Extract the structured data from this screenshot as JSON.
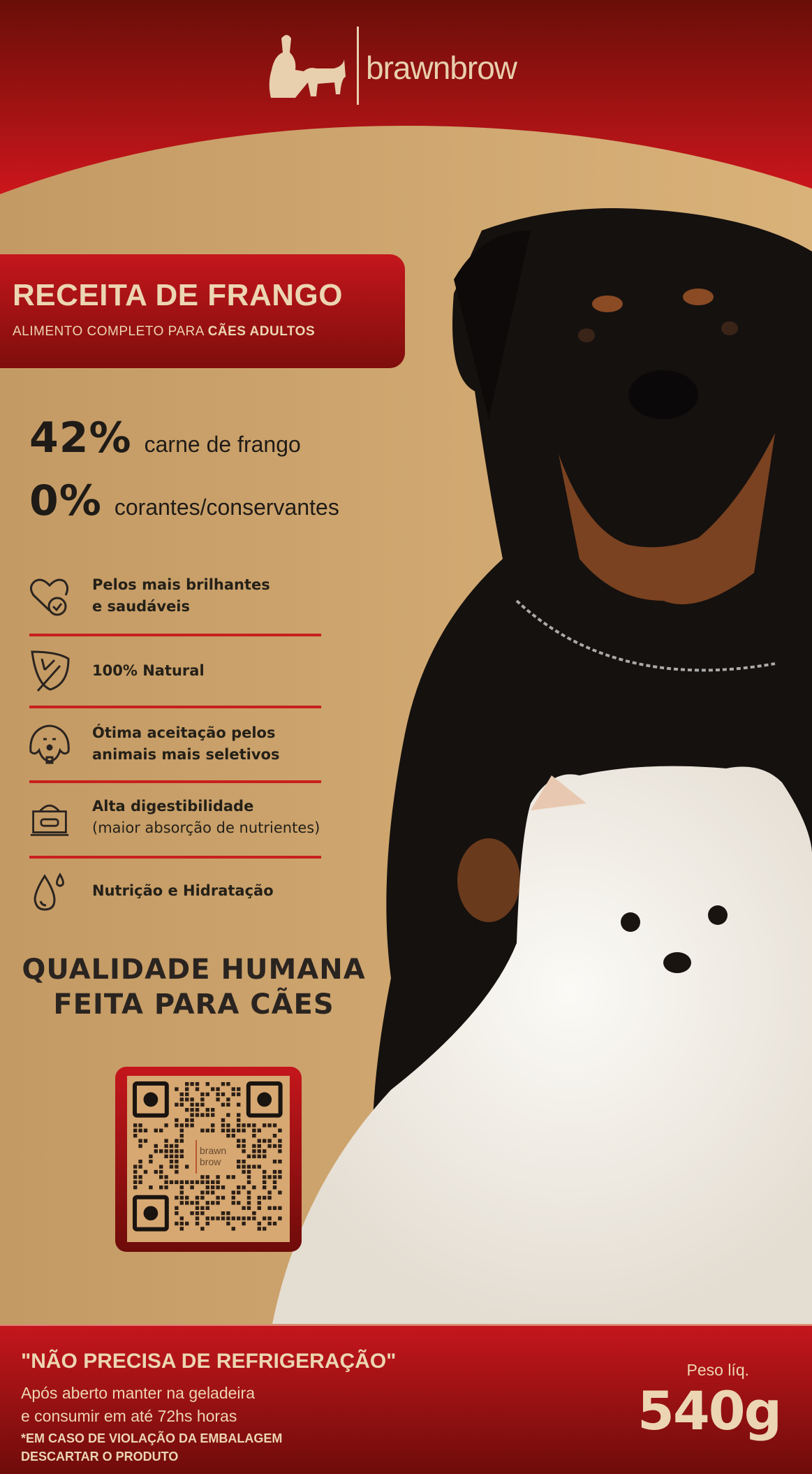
{
  "brand": {
    "name": "brawnbrow",
    "qr_label_1": "brawn",
    "qr_label_2": "brow"
  },
  "colors": {
    "red": "#c4161c",
    "dark_red": "#6e0c0a",
    "tan": "#c9a06a",
    "cream": "#ecd5b2",
    "text_dark": "#1f1b17"
  },
  "header": {
    "title": "RECEITA DE FRANGO",
    "subtitle_prefix": "ALIMENTO COMPLETO PARA ",
    "subtitle_bold": "CÃES ADULTOS"
  },
  "stats": [
    {
      "value": "42%",
      "label": "carne de frango"
    },
    {
      "value": "0%",
      "label": "corantes/conservantes"
    }
  ],
  "features": [
    {
      "icon": "heart-check-icon",
      "line1": "Pelos mais brilhantes",
      "line2": "e saudáveis"
    },
    {
      "icon": "leaf-icon",
      "line1": "100% Natural",
      "line2": ""
    },
    {
      "icon": "dog-face-icon",
      "line1": "Ótima aceitação pelos",
      "line2": "animais mais seletivos"
    },
    {
      "icon": "food-bowl-icon",
      "line1": "Alta digestibilidade",
      "line2": "(maior absorção de nutrientes)"
    },
    {
      "icon": "water-drop-icon",
      "line1": "Nutrição e Hidratação",
      "line2": ""
    }
  ],
  "tagline": {
    "line1": "QUALIDADE HUMANA",
    "line2": "FEITA PARA CÃES"
  },
  "footer": {
    "headline": "\"NÃO PRECISA DE REFRIGERAÇÃO\"",
    "line1": "Após aberto manter na geladeira",
    "line2": "e consumir em até 72hs horas",
    "warning1": "*EM CASO DE VIOLAÇÃO DA EMBALAGEM",
    "warning2": "DESCARTAR O PRODUTO",
    "weight_label": "Peso líq.",
    "weight": "540g"
  }
}
